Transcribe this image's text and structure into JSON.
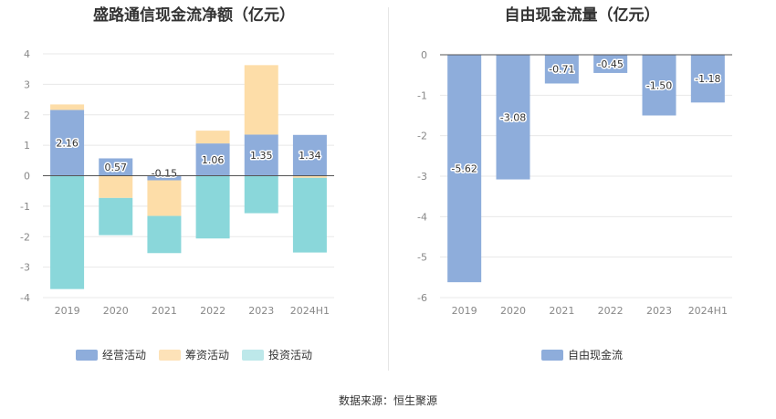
{
  "source": "数据来源：恒生聚源",
  "chart_data": [
    {
      "type": "bar",
      "stacked": true,
      "title": "盛路通信现金流净额（亿元）",
      "categories": [
        "2019",
        "2020",
        "2021",
        "2022",
        "2023",
        "2024H1"
      ],
      "ylim": [
        -4,
        4
      ],
      "yticks": [
        "4",
        "3",
        "2",
        "1",
        "0",
        "-1",
        "-2",
        "-3",
        "-4"
      ],
      "series": [
        {
          "name": "经营活动",
          "color": "#8eaddb",
          "values": [
            2.16,
            0.57,
            -0.15,
            1.06,
            1.35,
            1.34
          ]
        },
        {
          "name": "筹资活动",
          "color": "#fddda8",
          "values": [
            0.18,
            -0.73,
            -1.17,
            0.42,
            2.28,
            -0.07
          ]
        },
        {
          "name": "投资活动",
          "color": "#8ad7da",
          "values": [
            -3.72,
            -1.22,
            -1.22,
            -2.06,
            -1.23,
            -2.45
          ]
        }
      ],
      "data_labels": [
        "2.16",
        "0.57",
        "-0.15",
        "1.06",
        "1.35",
        "1.34"
      ],
      "legend_swatch_colors": [
        "#8eaddb",
        "#fde2b8",
        "#bde8ea"
      ]
    },
    {
      "type": "bar",
      "title": "自由现金流量（亿元）",
      "categories": [
        "2019",
        "2020",
        "2021",
        "2022",
        "2023",
        "2024H1"
      ],
      "ylim": [
        -6,
        0
      ],
      "yticks": [
        "0",
        "-1",
        "-2",
        "-3",
        "-4",
        "-5",
        "-6"
      ],
      "series": [
        {
          "name": "自由现金流",
          "color": "#8eaddb",
          "values": [
            -5.62,
            -3.08,
            -0.71,
            -0.45,
            -1.5,
            -1.18
          ]
        }
      ],
      "data_labels": [
        "-5.62",
        "-3.08",
        "-0.71",
        "-0.45",
        "-1.50",
        "-1.18"
      ],
      "legend_swatch_colors": [
        "#8eaddb"
      ]
    }
  ]
}
